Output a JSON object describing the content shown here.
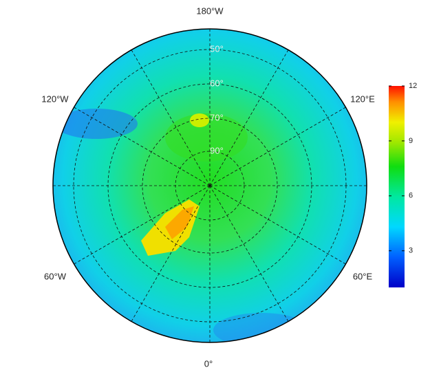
{
  "map": {
    "lon_labels": [
      "180°W",
      "120°W",
      "120°E",
      "60°W",
      "60°E",
      "0°"
    ],
    "lat_labels": [
      "50°",
      "60°",
      "70°",
      "90°"
    ],
    "colorbar": {
      "lim": [
        1,
        12
      ],
      "ticks": [
        3,
        6,
        9,
        12
      ]
    }
  }
}
